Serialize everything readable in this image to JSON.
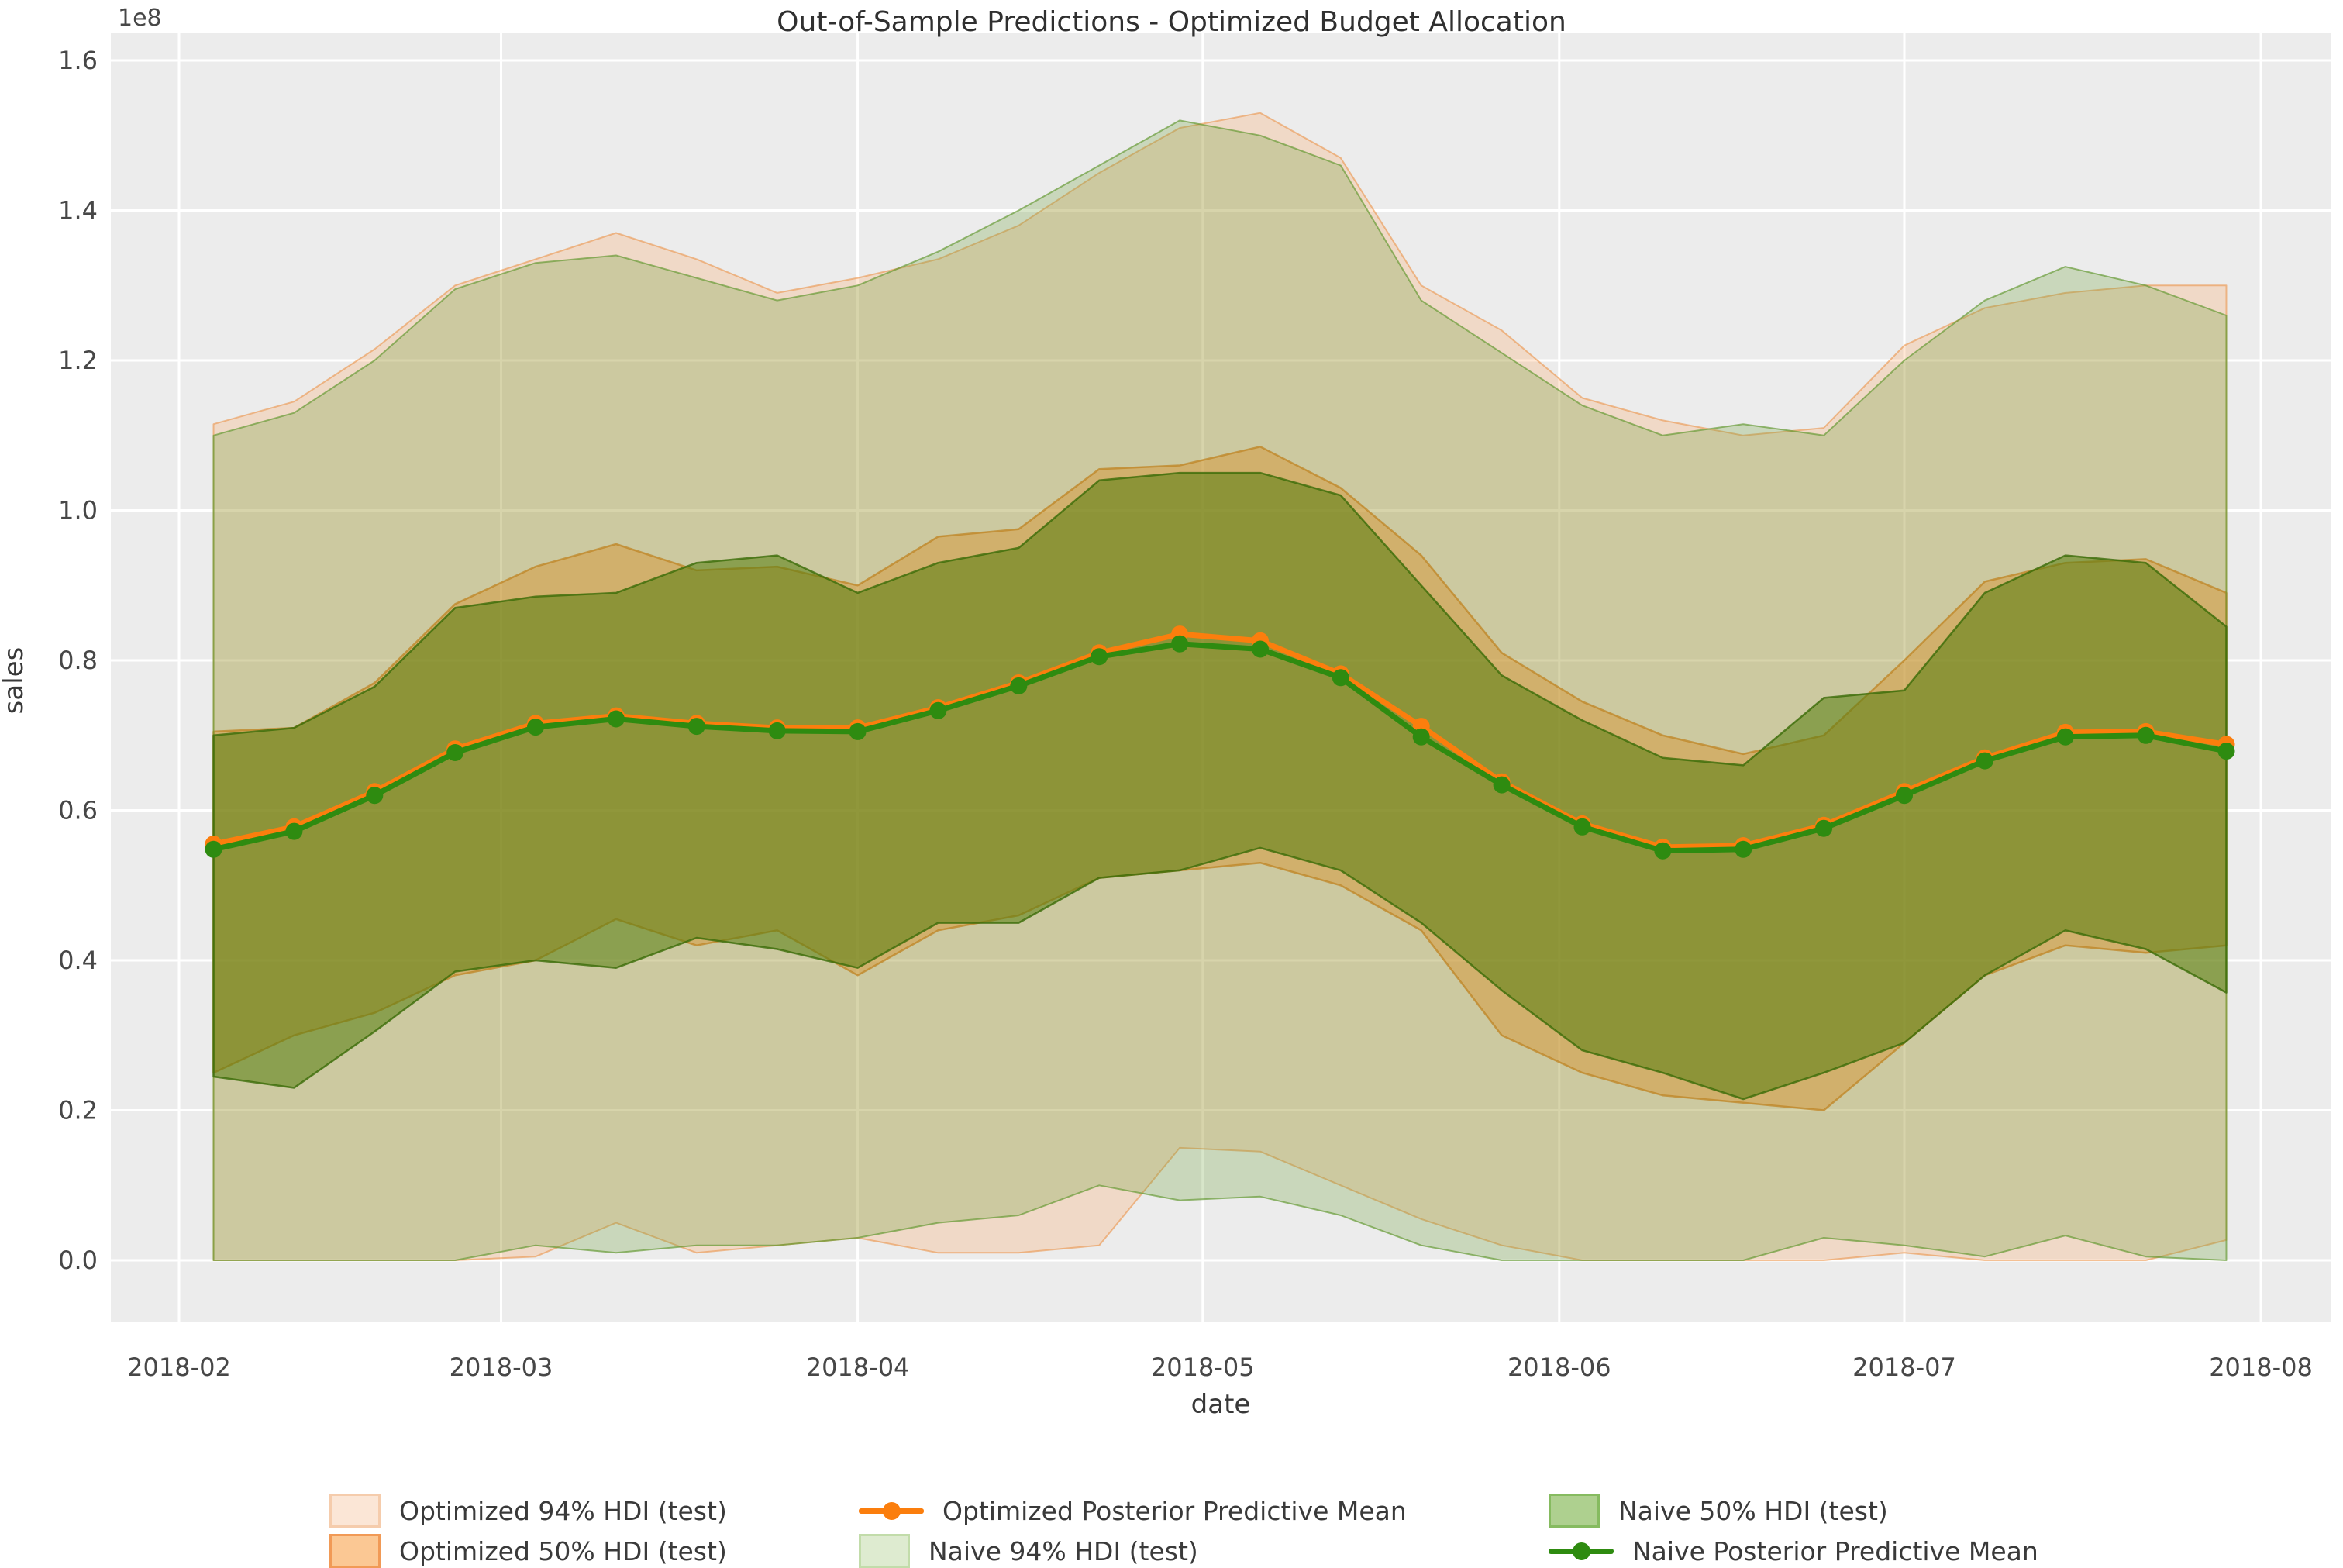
{
  "title": "Out-of-Sample Predictions - Optimized Budget Allocation",
  "axes": {
    "x_label": "date",
    "y_label": "sales",
    "offset_text": "1e8"
  },
  "colors": {
    "axes_background": "#ececec",
    "grid": "#ffffff",
    "tick_text": "#474747",
    "optimized_mean_line": "#fb7e0d",
    "naive_mean_line": "#2e8b10",
    "optimized_94_fill": "rgba(255,150,70,0.22)",
    "optimized_94_edge": "rgba(235,140,60,0.55)",
    "optimized_50_fill": "rgba(255,140,40,0.45)",
    "optimized_50_edge": "rgba(222,120,25,0.75)",
    "naive_94_fill": "rgba(110,160,60,0.28)",
    "naive_94_edge": "rgba(95,150,45,0.65)",
    "naive_50_fill": "rgba(85,125,15,0.55)",
    "naive_50_edge": "rgba(58,108,8,0.8)",
    "legend_opt94_patch_fill": "#fbe6d6",
    "legend_opt94_patch_edge": "#f5ccac",
    "legend_opt50_patch_fill": "#fbc894",
    "legend_opt50_patch_edge": "#f19a56",
    "legend_naive94_patch_fill": "#deebd0",
    "legend_naive94_patch_edge": "#c2dcaa",
    "legend_naive50_patch_fill": "#aed08f",
    "legend_naive50_patch_edge": "#86bb60"
  },
  "legend": {
    "items": [
      {
        "label": "Optimized 94% HDI (test)",
        "marker": "patch",
        "swatch": "opt94"
      },
      {
        "label": "Optimized Posterior Predictive Mean",
        "marker": "line",
        "swatch": "optline"
      },
      {
        "label": "Naive 50% HDI (test)",
        "marker": "patch",
        "swatch": "naive50"
      },
      {
        "label": "Optimized 50% HDI (test)",
        "marker": "patch",
        "swatch": "opt50"
      },
      {
        "label": "Naive 94% HDI (test)",
        "marker": "patch",
        "swatch": "naive94"
      },
      {
        "label": "Naive Posterior Predictive Mean",
        "marker": "line",
        "swatch": "naiveline"
      }
    ]
  },
  "chart_data": {
    "type": "line",
    "title": "Out-of-Sample Predictions - Optimized Budget Allocation",
    "xlabel": "date",
    "ylabel": "sales",
    "y_unit": "1e8",
    "ylim": [
      0.0,
      1.6
    ],
    "grid": true,
    "legend_position": "bottom",
    "x_ticks": [
      "2018-02",
      "2018-03",
      "2018-04",
      "2018-05",
      "2018-06",
      "2018-07",
      "2018-08"
    ],
    "y_ticks": [
      "0.0",
      "0.2",
      "0.4",
      "0.6",
      "0.8",
      "1.0",
      "1.2",
      "1.4",
      "1.6"
    ],
    "x": [
      "2018-02-04",
      "2018-02-11",
      "2018-02-18",
      "2018-02-25",
      "2018-03-04",
      "2018-03-11",
      "2018-03-18",
      "2018-03-25",
      "2018-04-01",
      "2018-04-08",
      "2018-04-15",
      "2018-04-22",
      "2018-04-29",
      "2018-05-06",
      "2018-05-13",
      "2018-05-20",
      "2018-05-27",
      "2018-06-03",
      "2018-06-10",
      "2018-06-17",
      "2018-06-24",
      "2018-07-01",
      "2018-07-08",
      "2018-07-15",
      "2018-07-22",
      "2018-07-29"
    ],
    "series": [
      {
        "name": "Optimized 94% HDI (test)",
        "kind": "band",
        "style": "optimized_94",
        "upper": [
          1.115,
          1.145,
          1.215,
          1.3,
          1.335,
          1.37,
          1.335,
          1.29,
          1.31,
          1.335,
          1.38,
          1.45,
          1.51,
          1.53,
          1.47,
          1.3,
          1.24,
          1.15,
          1.12,
          1.1,
          1.11,
          1.22,
          1.27,
          1.29,
          1.3,
          1.3
        ],
        "lower": [
          0.0,
          0.0,
          0.0,
          0.0,
          0.005,
          0.05,
          0.01,
          0.02,
          0.03,
          0.01,
          0.01,
          0.02,
          0.15,
          0.145,
          0.1,
          0.055,
          0.02,
          0.0,
          0.0,
          0.0,
          0.0,
          0.01,
          0.0,
          0.0,
          0.0,
          0.027
        ]
      },
      {
        "name": "Optimized 50% HDI (test)",
        "kind": "band",
        "style": "optimized_50",
        "upper": [
          0.705,
          0.71,
          0.77,
          0.875,
          0.925,
          0.955,
          0.92,
          0.925,
          0.9,
          0.965,
          0.975,
          1.055,
          1.06,
          1.085,
          1.03,
          0.94,
          0.81,
          0.745,
          0.7,
          0.675,
          0.7,
          0.8,
          0.905,
          0.93,
          0.935,
          0.89
        ],
        "lower": [
          0.25,
          0.3,
          0.33,
          0.38,
          0.4,
          0.455,
          0.42,
          0.44,
          0.38,
          0.44,
          0.46,
          0.51,
          0.52,
          0.53,
          0.5,
          0.44,
          0.3,
          0.25,
          0.22,
          0.21,
          0.2,
          0.29,
          0.38,
          0.42,
          0.41,
          0.42
        ]
      },
      {
        "name": "Naive 94% HDI (test)",
        "kind": "band",
        "style": "naive_94",
        "upper": [
          1.1,
          1.13,
          1.2,
          1.295,
          1.33,
          1.34,
          1.31,
          1.28,
          1.3,
          1.345,
          1.4,
          1.46,
          1.52,
          1.5,
          1.46,
          1.28,
          1.21,
          1.14,
          1.1,
          1.115,
          1.1,
          1.2,
          1.28,
          1.325,
          1.3,
          1.26
        ],
        "lower": [
          0.0,
          0.0,
          0.0,
          0.0,
          0.02,
          0.01,
          0.02,
          0.02,
          0.03,
          0.05,
          0.06,
          0.1,
          0.08,
          0.085,
          0.06,
          0.02,
          0.0,
          0.0,
          0.0,
          0.0,
          0.03,
          0.02,
          0.005,
          0.033,
          0.005,
          0.0
        ]
      },
      {
        "name": "Naive 50% HDI (test)",
        "kind": "band",
        "style": "naive_50",
        "upper": [
          0.7,
          0.71,
          0.765,
          0.87,
          0.885,
          0.89,
          0.93,
          0.94,
          0.89,
          0.93,
          0.95,
          1.04,
          1.05,
          1.05,
          1.02,
          0.9,
          0.78,
          0.72,
          0.67,
          0.66,
          0.75,
          0.76,
          0.89,
          0.94,
          0.93,
          0.845
        ],
        "lower": [
          0.245,
          0.23,
          0.305,
          0.385,
          0.4,
          0.39,
          0.43,
          0.415,
          0.39,
          0.45,
          0.45,
          0.51,
          0.52,
          0.55,
          0.52,
          0.45,
          0.36,
          0.28,
          0.25,
          0.215,
          0.25,
          0.29,
          0.38,
          0.44,
          0.415,
          0.357
        ]
      },
      {
        "name": "Optimized Posterior Predictive Mean",
        "kind": "line",
        "style": "optimized_mean",
        "values": [
          0.555,
          0.578,
          0.625,
          0.682,
          0.716,
          0.726,
          0.716,
          0.71,
          0.71,
          0.737,
          0.77,
          0.81,
          0.835,
          0.826,
          0.782,
          0.712,
          0.638,
          0.582,
          0.551,
          0.553,
          0.58,
          0.625,
          0.67,
          0.704,
          0.705,
          0.688
        ]
      },
      {
        "name": "Naive Posterior Predictive Mean",
        "kind": "line",
        "style": "naive_mean",
        "values": [
          0.548,
          0.572,
          0.62,
          0.677,
          0.711,
          0.722,
          0.712,
          0.706,
          0.705,
          0.733,
          0.766,
          0.805,
          0.822,
          0.815,
          0.777,
          0.698,
          0.634,
          0.578,
          0.546,
          0.548,
          0.576,
          0.62,
          0.666,
          0.698,
          0.7,
          0.679
        ]
      }
    ]
  }
}
